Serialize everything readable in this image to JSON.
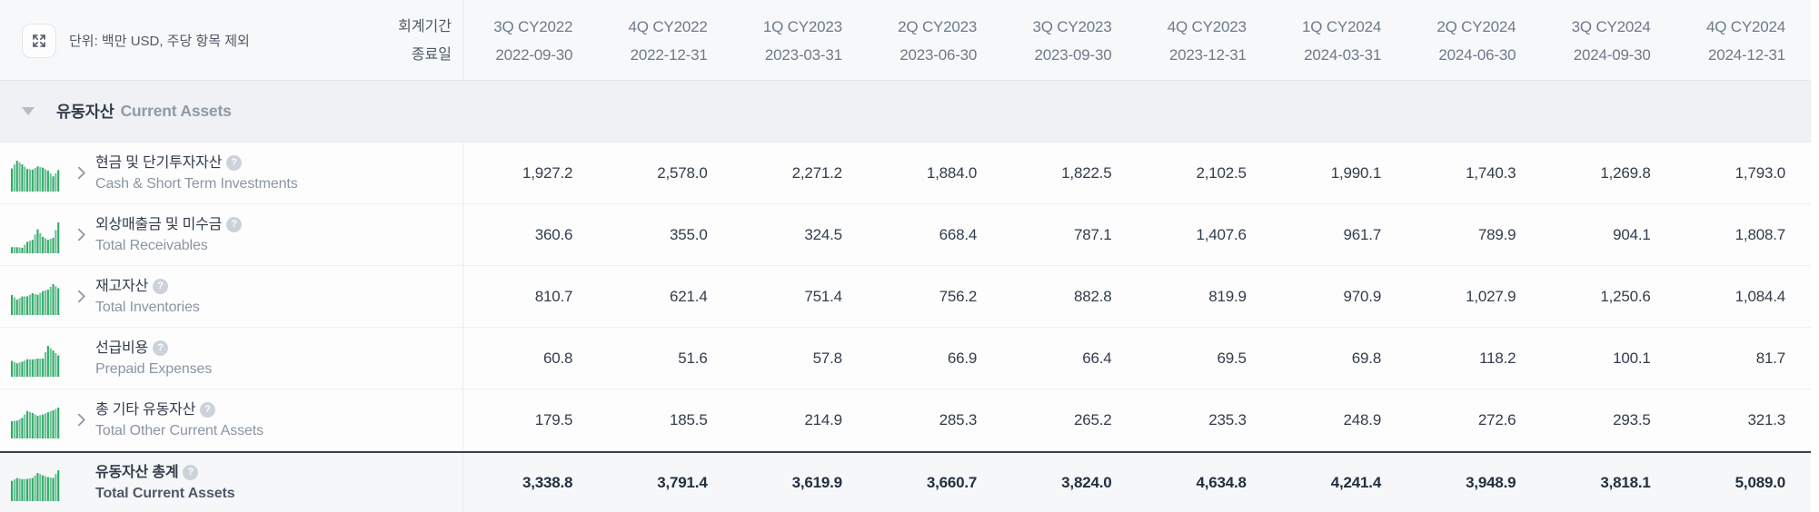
{
  "header": {
    "unit_label": "단위: 백만 USD, 주당 항목 제외",
    "fiscal_period_label": "회계기간",
    "end_date_label": "종료일"
  },
  "section": {
    "title_ko": "유동자산",
    "title_en": "Current Assets"
  },
  "columns": [
    {
      "quarter": "3Q CY2022",
      "end_date": "2022-09-30"
    },
    {
      "quarter": "4Q CY2022",
      "end_date": "2022-12-31"
    },
    {
      "quarter": "1Q CY2023",
      "end_date": "2023-03-31"
    },
    {
      "quarter": "2Q CY2023",
      "end_date": "2023-06-30"
    },
    {
      "quarter": "3Q CY2023",
      "end_date": "2023-09-30"
    },
    {
      "quarter": "4Q CY2023",
      "end_date": "2023-12-31"
    },
    {
      "quarter": "1Q CY2024",
      "end_date": "2024-03-31"
    },
    {
      "quarter": "2Q CY2024",
      "end_date": "2024-06-30"
    },
    {
      "quarter": "3Q CY2024",
      "end_date": "2024-09-30"
    },
    {
      "quarter": "4Q CY2024",
      "end_date": "2024-12-31"
    }
  ],
  "rows": [
    {
      "name_ko": "현금 및 단기투자자산",
      "name_en": "Cash & Short Term Investments",
      "has_chevron": true,
      "is_total": false,
      "values": [
        "1,927.2",
        "2,578.0",
        "2,271.2",
        "1,884.0",
        "1,822.5",
        "2,102.5",
        "1,990.1",
        "1,740.3",
        "1,269.8",
        "1,793.0"
      ]
    },
    {
      "name_ko": "외상매출금 및 미수금",
      "name_en": "Total Receivables",
      "has_chevron": true,
      "is_total": false,
      "values": [
        "360.6",
        "355.0",
        "324.5",
        "668.4",
        "787.1",
        "1,407.6",
        "961.7",
        "789.9",
        "904.1",
        "1,808.7"
      ]
    },
    {
      "name_ko": "재고자산",
      "name_en": "Total Inventories",
      "has_chevron": true,
      "is_total": false,
      "values": [
        "810.7",
        "621.4",
        "751.4",
        "756.2",
        "882.8",
        "819.9",
        "970.9",
        "1,027.9",
        "1,250.6",
        "1,084.4"
      ]
    },
    {
      "name_ko": "선급비용",
      "name_en": "Prepaid Expenses",
      "has_chevron": false,
      "is_total": false,
      "values": [
        "60.8",
        "51.6",
        "57.8",
        "66.9",
        "66.4",
        "69.5",
        "69.8",
        "118.2",
        "100.1",
        "81.7"
      ]
    },
    {
      "name_ko": "총 기타 유동자산",
      "name_en": "Total Other Current Assets",
      "has_chevron": true,
      "is_total": false,
      "values": [
        "179.5",
        "185.5",
        "214.9",
        "285.3",
        "265.2",
        "235.3",
        "248.9",
        "272.6",
        "293.5",
        "321.3"
      ]
    },
    {
      "name_ko": "유동자산 총계",
      "name_en": "Total Current Assets",
      "has_chevron": false,
      "is_total": true,
      "values": [
        "3,338.8",
        "3,791.4",
        "3,619.9",
        "3,660.7",
        "3,824.0",
        "4,634.8",
        "4,241.4",
        "3,948.9",
        "3,818.1",
        "5,089.0"
      ]
    }
  ],
  "icons": {
    "help_glyph": "?",
    "bar_green": "#2fa968",
    "bar_green_light": "#6cc493"
  }
}
